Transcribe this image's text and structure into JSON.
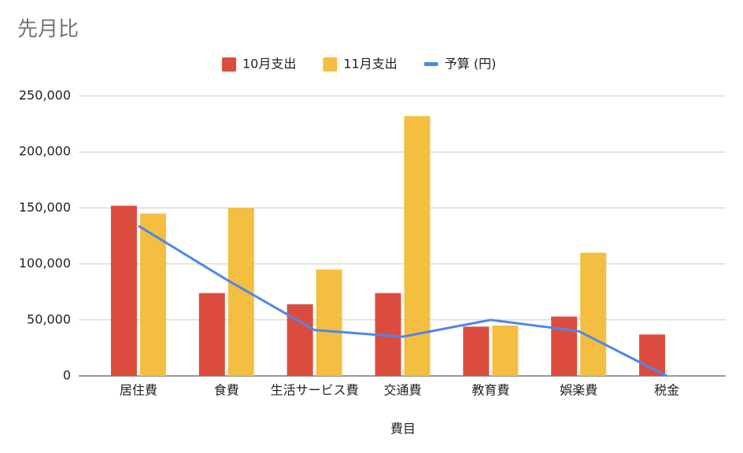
{
  "chart_data": {
    "type": "bar_line",
    "title": "先月比",
    "x_label": "費目",
    "categories": [
      "居住費",
      "食費",
      "生活サービス費",
      "交通費",
      "教育費",
      "娯楽費",
      "税金"
    ],
    "series": [
      {
        "name": "10月支出",
        "type": "bar",
        "color": "#db4c3f",
        "values": [
          152000,
          74000,
          64000,
          74000,
          44000,
          53000,
          37000
        ]
      },
      {
        "name": "11月支出",
        "type": "bar",
        "color": "#f4be41",
        "values": [
          145000,
          150000,
          95000,
          232000,
          45000,
          110000,
          null
        ]
      },
      {
        "name": "予算 (円)",
        "type": "line",
        "color": "#4f86ec",
        "values": [
          134000,
          86000,
          41000,
          35000,
          50000,
          40000,
          0
        ]
      }
    ],
    "ylim": [
      0,
      250000
    ],
    "yticks": [
      0,
      {
        "value": 50000,
        "label": "50,000"
      },
      {
        "value": 100000,
        "label": "100,000"
      },
      {
        "value": 150000,
        "label": "150,000"
      },
      {
        "value": 200000,
        "label": "200,000"
      },
      {
        "value": 250000,
        "label": "250,000"
      }
    ],
    "grid": true,
    "legend": "top"
  }
}
